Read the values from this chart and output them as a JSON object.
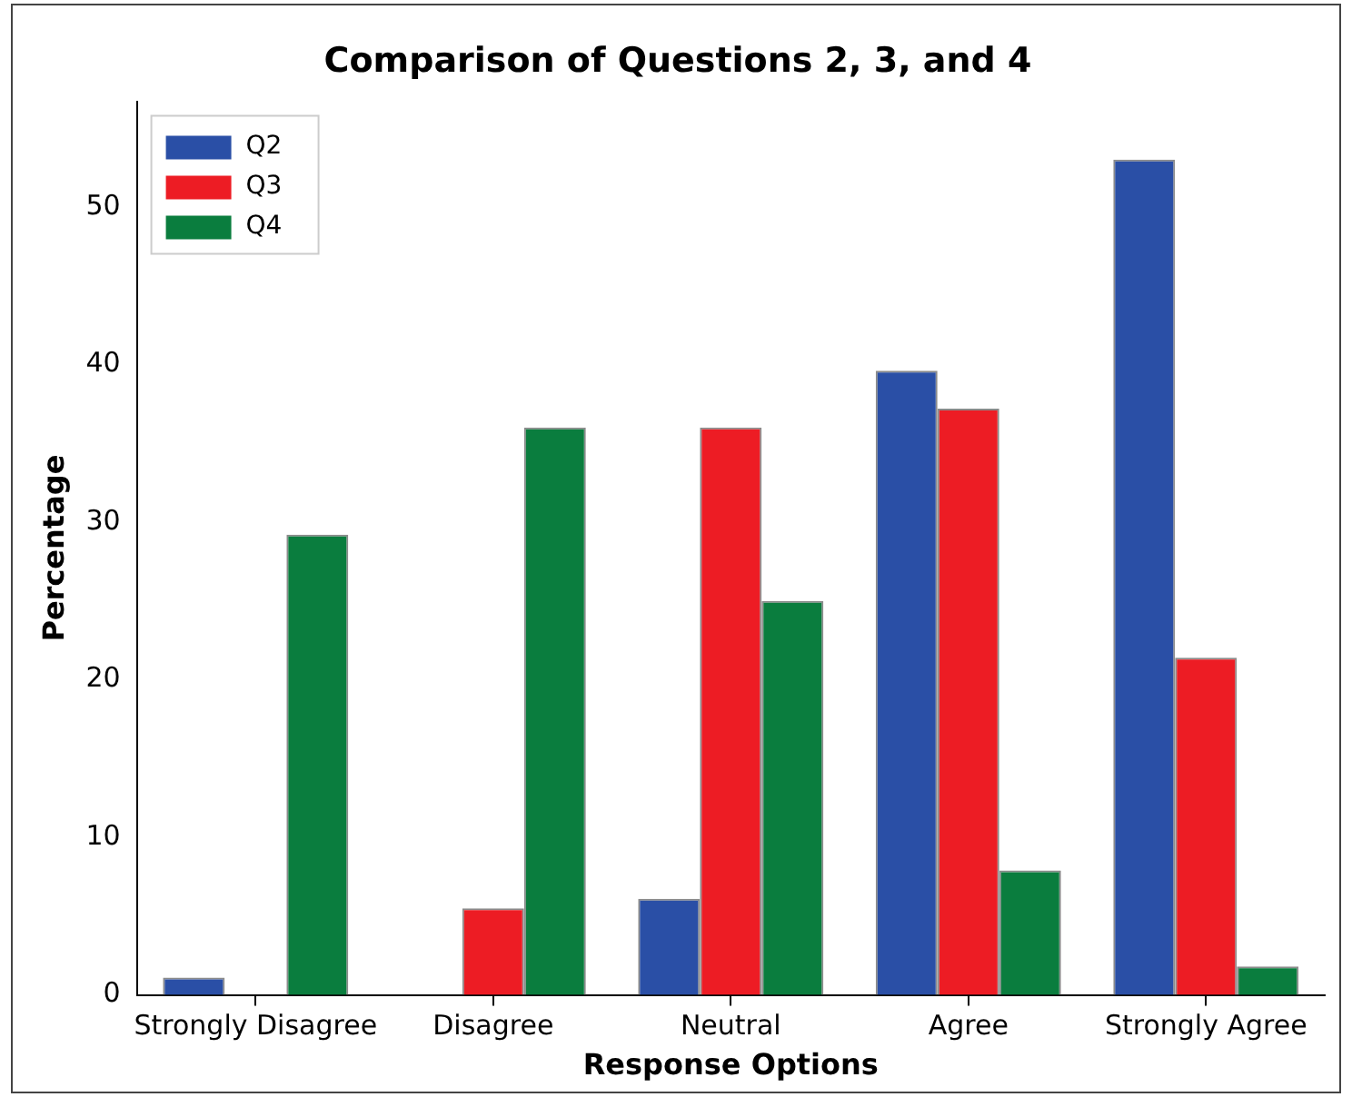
{
  "chart_data": {
    "type": "bar",
    "title": "Comparison of Questions 2, 3, and 4",
    "xlabel": "Response Options",
    "ylabel": "Percentage",
    "categories": [
      "Strongly Disagree",
      "Disagree",
      "Neutral",
      "Agree",
      "Strongly Agree"
    ],
    "series": [
      {
        "name": "Q2",
        "color": "#2a4fa6",
        "values": [
          1.1,
          0,
          6.1,
          39.6,
          53
        ]
      },
      {
        "name": "Q3",
        "color": "#ed1c24",
        "values": [
          0,
          5.5,
          36,
          37.2,
          21.4
        ]
      },
      {
        "name": "Q4",
        "color": "#0a7d3e",
        "values": [
          29.2,
          36,
          25,
          7.9,
          1.8
        ]
      }
    ],
    "ylim": [
      0,
      56.7
    ],
    "yticks": [
      0,
      10,
      20,
      30,
      40,
      50
    ],
    "grid": false,
    "legend": "top left"
  }
}
